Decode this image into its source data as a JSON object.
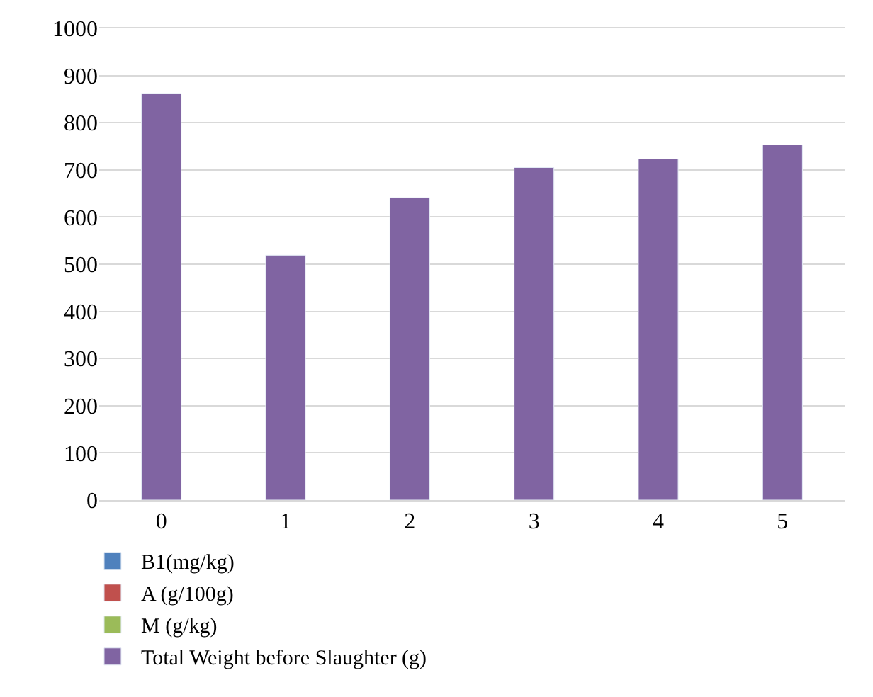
{
  "chart_data": {
    "type": "bar",
    "categories": [
      "0",
      "1",
      "2",
      "3",
      "4",
      "5"
    ],
    "series": [
      {
        "name": "B1(mg/kg)",
        "color": "#4f81bd",
        "values": [
          null,
          null,
          null,
          null,
          null,
          null
        ]
      },
      {
        "name": "A (g/100g)",
        "color": "#c0504d",
        "values": [
          null,
          null,
          null,
          null,
          null,
          null
        ]
      },
      {
        "name": "M (g/kg)",
        "color": "#9bbb59",
        "values": [
          null,
          null,
          null,
          null,
          null,
          null
        ]
      },
      {
        "name": "Total Weight before Slaughter (g)",
        "color": "#8064a2",
        "values": [
          862,
          519,
          641,
          705,
          723,
          753
        ]
      }
    ],
    "ylim": [
      0,
      1000
    ],
    "yticks": [
      0,
      100,
      200,
      300,
      400,
      500,
      600,
      700,
      800,
      900,
      1000
    ],
    "grid": "y",
    "legend": "bottom"
  }
}
